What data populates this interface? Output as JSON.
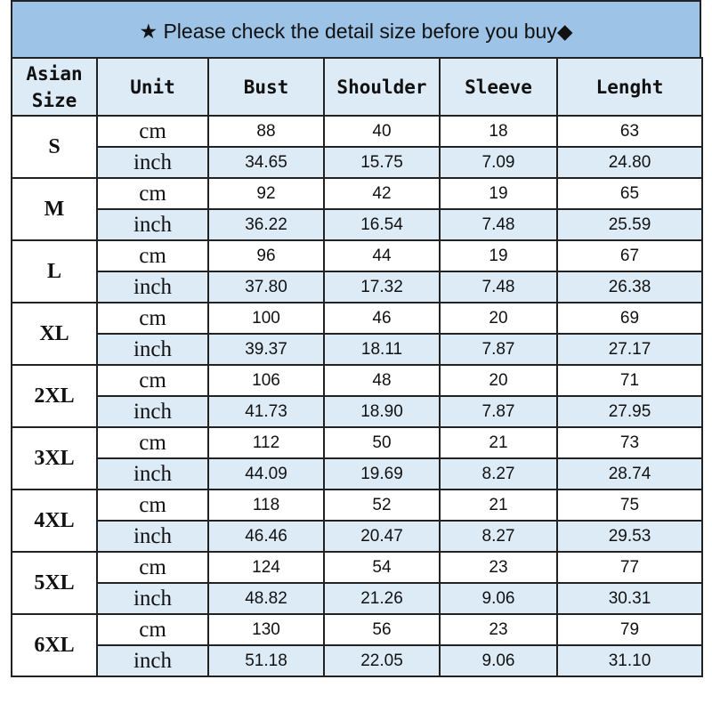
{
  "title": "★ Please check the detail size before you buy◆",
  "colors": {
    "title_bg": "#9dc3e6",
    "header_bg": "#ddebf7",
    "inch_row_bg": "#ddebf7"
  },
  "headers": [
    "Asian Size",
    "Unit",
    "Bust",
    "Shoulder",
    "Sleeve",
    "Lenght"
  ],
  "units": {
    "cm": "cm",
    "inch": "inch"
  },
  "sizes": [
    {
      "size": "S",
      "cm": [
        "88",
        "40",
        "18",
        "63"
      ],
      "inch": [
        "34.65",
        "15.75",
        "7.09",
        "24.80"
      ]
    },
    {
      "size": "M",
      "cm": [
        "92",
        "42",
        "19",
        "65"
      ],
      "inch": [
        "36.22",
        "16.54",
        "7.48",
        "25.59"
      ]
    },
    {
      "size": "L",
      "cm": [
        "96",
        "44",
        "19",
        "67"
      ],
      "inch": [
        "37.80",
        "17.32",
        "7.48",
        "26.38"
      ]
    },
    {
      "size": "XL",
      "cm": [
        "100",
        "46",
        "20",
        "69"
      ],
      "inch": [
        "39.37",
        "18.11",
        "7.87",
        "27.17"
      ]
    },
    {
      "size": "2XL",
      "cm": [
        "106",
        "48",
        "20",
        "71"
      ],
      "inch": [
        "41.73",
        "18.90",
        "7.87",
        "27.95"
      ]
    },
    {
      "size": "3XL",
      "cm": [
        "112",
        "50",
        "21",
        "73"
      ],
      "inch": [
        "44.09",
        "19.69",
        "8.27",
        "28.74"
      ]
    },
    {
      "size": "4XL",
      "cm": [
        "118",
        "52",
        "21",
        "75"
      ],
      "inch": [
        "46.46",
        "20.47",
        "8.27",
        "29.53"
      ]
    },
    {
      "size": "5XL",
      "cm": [
        "124",
        "54",
        "23",
        "77"
      ],
      "inch": [
        "48.82",
        "21.26",
        "9.06",
        "30.31"
      ]
    },
    {
      "size": "6XL",
      "cm": [
        "130",
        "56",
        "23",
        "79"
      ],
      "inch": [
        "51.18",
        "22.05",
        "9.06",
        "31.10"
      ]
    }
  ]
}
